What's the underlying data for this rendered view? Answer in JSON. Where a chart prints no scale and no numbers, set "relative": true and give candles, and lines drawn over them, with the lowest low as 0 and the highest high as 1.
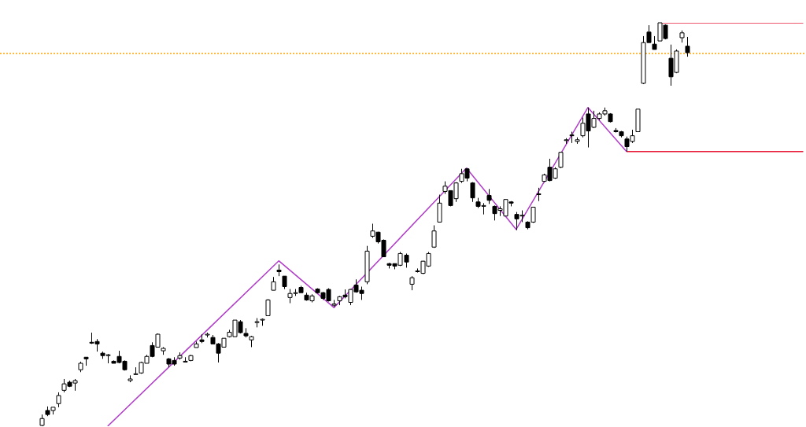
{
  "chart_data": {
    "type": "candlestick",
    "relative": true,
    "categories": [
      null,
      null,
      null,
      null,
      null,
      null,
      null,
      null,
      null,
      null,
      null,
      null,
      null,
      null,
      null,
      null,
      null,
      null,
      null,
      null,
      null,
      null,
      null,
      null,
      null,
      null,
      null,
      null,
      null,
      null,
      null,
      null,
      null,
      null,
      null,
      null,
      null,
      null,
      null,
      null,
      null,
      null,
      null,
      null,
      null,
      null,
      null,
      null,
      null,
      null,
      null,
      null,
      null,
      null,
      null,
      null,
      null,
      null,
      null,
      null,
      null,
      null,
      null,
      null,
      null,
      null,
      null,
      null,
      null,
      null,
      null,
      null,
      null,
      null,
      null,
      null,
      null,
      null,
      null,
      null,
      null,
      null,
      null,
      null,
      null,
      null,
      null,
      null,
      null,
      null,
      null,
      null,
      null,
      null,
      null,
      null,
      null,
      null,
      null,
      null,
      null,
      null,
      null,
      null,
      null,
      null,
      null,
      null,
      null,
      null,
      null,
      null,
      null,
      null,
      null,
      null,
      null,
      null,
      null,
      null,
      null,
      null,
      null,
      null,
      null,
      null,
      null,
      null,
      null,
      null,
      null,
      null,
      null,
      null,
      null,
      null,
      null,
      null,
      null,
      null,
      null,
      null,
      null,
      null,
      null,
      null
    ],
    "ohlc": [
      null,
      null,
      null,
      null,
      null,
      null,
      null,
      [
        0.002,
        0.029,
        0,
        0.019
      ],
      [
        0.039,
        0.049,
        0.025,
        0.029
      ],
      [
        0.039,
        0.047,
        0.029,
        0.047
      ],
      [
        0.056,
        0.084,
        0.047,
        0.076
      ],
      [
        0.089,
        0.117,
        0.084,
        0.105
      ],
      [
        0.109,
        0.113,
        0.097,
        0.099
      ],
      [
        0.107,
        0.117,
        0.088,
        0.113
      ],
      [
        0.14,
        0.16,
        0.134,
        0.156
      ],
      [
        0.171,
        0.171,
        0.15,
        0.167
      ],
      [
        0.208,
        0.232,
        0.204,
        0.206
      ],
      [
        0.21,
        0.216,
        0.185,
        0.204
      ],
      [
        0.181,
        0.185,
        0.167,
        0.175
      ],
      [
        0.177,
        0.179,
        0.156,
        0.177
      ],
      [
        0.161,
        0.163,
        0.156,
        0.156
      ],
      [
        0.173,
        0.187,
        0.156,
        0.158
      ],
      [
        0.161,
        0.163,
        0.138,
        0.14
      ],
      [
        0.113,
        0.126,
        0.109,
        0.117
      ],
      [
        0.13,
        0.146,
        0.128,
        0.13
      ],
      [
        0.132,
        0.16,
        0.13,
        0.158
      ],
      [
        0.156,
        0.177,
        0.156,
        0.173
      ],
      [
        0.2,
        0.208,
        0.171,
        0.173
      ],
      [
        0.196,
        0.23,
        0.195,
        0.228
      ],
      [
        0.187,
        0.196,
        0.177,
        0.193
      ],
      [
        0.167,
        0.169,
        0.146,
        0.154
      ],
      [
        0.163,
        0.171,
        0.15,
        0.154
      ],
      [
        0.169,
        0.183,
        0.165,
        0.175
      ],
      [
        0.161,
        0.171,
        0.16,
        0.161
      ],
      [
        0.163,
        0.177,
        0.161,
        0.175
      ],
      [
        0.195,
        0.21,
        0.195,
        0.204
      ],
      [
        0.214,
        0.228,
        0.206,
        0.21
      ],
      [
        0.228,
        0.232,
        0.22,
        0.228
      ],
      [
        0.22,
        0.226,
        0.204,
        0.204
      ],
      [
        0.204,
        0.206,
        0.158,
        0.181
      ],
      [
        0.196,
        0.218,
        0.196,
        0.218
      ],
      [
        0.222,
        0.239,
        0.22,
        0.233
      ],
      [
        0.222,
        0.263,
        0.222,
        0.263
      ],
      [
        0.259,
        0.263,
        0.23,
        0.232
      ],
      [
        0.23,
        0.243,
        0.22,
        0.224
      ],
      [
        0.214,
        0.224,
        0.196,
        0.222
      ],
      [
        0.259,
        0.268,
        0.245,
        0.259
      ],
      [
        0.263,
        0.267,
        0.249,
        0.265
      ],
      [
        0.274,
        0.315,
        0.274,
        0.313
      ],
      [
        0.337,
        0.37,
        0.337,
        0.358
      ],
      [
        0.387,
        0.401,
        0.372,
        0.383
      ],
      [
        0.372,
        0.372,
        0.34,
        0.346
      ],
      [
        0.319,
        0.34,
        0.305,
        0.329
      ],
      [
        0.331,
        0.34,
        0.323,
        0.331
      ],
      [
        0.344,
        0.348,
        0.331,
        0.331
      ],
      [
        0.325,
        0.331,
        0.311,
        0.313
      ],
      [
        0.311,
        0.327,
        0.307,
        0.323
      ],
      [
        0.34,
        0.342,
        0.329,
        0.331
      ],
      [
        0.331,
        0.333,
        0.313,
        0.317
      ],
      [
        0.339,
        0.342,
        0.309,
        0.311
      ],
      [
        0.3,
        0.313,
        0.296,
        0.303
      ],
      [
        0.311,
        0.323,
        0.3,
        0.321
      ],
      [
        0.325,
        0.339,
        0.317,
        0.321
      ],
      [
        0.307,
        0.34,
        0.3,
        0.339
      ],
      [
        0.35,
        0.364,
        0.331,
        0.333
      ],
      [
        0.337,
        0.346,
        0.313,
        0.329
      ],
      [
        0.358,
        0.447,
        0.352,
        0.434
      ],
      [
        0.471,
        0.502,
        0.467,
        0.484
      ],
      [
        0.481,
        0.482,
        0.453,
        0.457
      ],
      [
        0.461,
        0.463,
        0.42,
        0.42
      ],
      [
        0.403,
        0.405,
        0.391,
        0.399
      ],
      [
        0.403,
        0.403,
        0.389,
        0.397
      ],
      [
        0.399,
        0.432,
        0.397,
        0.428
      ],
      [
        0.424,
        0.428,
        0.393,
        0.407
      ],
      [
        0.352,
        0.372,
        0.337,
        0.368
      ],
      [
        0.385,
        0.391,
        0.381,
        0.385
      ],
      [
        0.379,
        0.41,
        0.377,
        0.409
      ],
      [
        0.397,
        0.432,
        0.395,
        0.428
      ],
      [
        0.444,
        0.498,
        0.442,
        0.484
      ],
      [
        0.506,
        0.574,
        0.506,
        0.553
      ],
      [
        0.582,
        0.607,
        0.576,
        0.595
      ],
      [
        0.584,
        0.584,
        0.545,
        0.547
      ],
      [
        0.564,
        0.605,
        0.556,
        0.603
      ],
      [
        0.607,
        0.638,
        0.603,
        0.626
      ],
      [
        0.638,
        0.64,
        0.607,
        0.615
      ],
      [
        0.603,
        0.605,
        0.556,
        0.566
      ],
      [
        0.556,
        0.566,
        0.541,
        0.545
      ],
      [
        0.547,
        0.553,
        0.525,
        0.547
      ],
      [
        0.572,
        0.588,
        0.551,
        0.56
      ],
      [
        0.545,
        0.547,
        0.51,
        0.527
      ],
      [
        0.535,
        0.545,
        0.521,
        0.539
      ],
      [
        0.521,
        0.562,
        0.521,
        0.562
      ],
      [
        0.556,
        0.558,
        0.545,
        0.553
      ],
      [
        0.525,
        0.531,
        0.486,
        0.514
      ],
      [
        0.523,
        0.535,
        0.506,
        0.523
      ],
      [
        0.506,
        0.508,
        0.488,
        0.492
      ],
      [
        0.506,
        0.543,
        0.504,
        0.543
      ],
      [
        0.576,
        0.591,
        0.558,
        0.576
      ],
      [
        0.607,
        0.626,
        0.605,
        0.623
      ],
      [
        0.642,
        0.663,
        0.607,
        0.609
      ],
      [
        0.615,
        0.642,
        0.613,
        0.638
      ],
      [
        0.642,
        0.679,
        0.64,
        0.679
      ],
      [
        0.71,
        0.714,
        0.7,
        0.71
      ],
      [
        0.722,
        0.73,
        0.702,
        0.72
      ],
      [
        0.706,
        0.716,
        0.7,
        0.71
      ],
      [
        0.72,
        0.765,
        0.716,
        0.751
      ],
      [
        0.774,
        0.79,
        0.691,
        0.732
      ],
      [
        0.741,
        0.782,
        0.739,
        0.763
      ],
      [
        0.763,
        0.778,
        0.759,
        0.774
      ],
      [
        0.774,
        0.79,
        0.77,
        0.782
      ],
      [
        0.774,
        0.776,
        0.753,
        0.755
      ],
      [
        0.733,
        0.739,
        0.728,
        0.73
      ],
      [
        0.73,
        0.732,
        0.716,
        0.72
      ],
      [
        0.712,
        0.718,
        0.681,
        0.693
      ],
      [
        0.706,
        0.735,
        0.702,
        0.72
      ],
      [
        0.73,
        0.786,
        0.73,
        0.786
      ],
      [
        0.85,
        0.967,
        0.848,
        0.951
      ],
      [
        0.977,
        0.994,
        0.951,
        0.951
      ],
      [
        0.947,
        0.967,
        0.934,
        0.934
      ],
      [
        0.955,
        1,
        0.955,
        1
      ],
      [
        0.994,
        0.996,
        0.959,
        0.961
      ],
      [
        0.912,
        0.946,
        0.844,
        0.866
      ],
      [
        0.877,
        0.934,
        0.875,
        0.93
      ],
      [
        0.963,
        0.981,
        0.951,
        0.975
      ],
      [
        0.942,
        0.965,
        0.916,
        0.926
      ],
      null,
      null,
      null,
      null,
      null,
      null,
      null,
      null,
      null,
      null,
      null,
      null,
      null,
      null,
      null,
      null,
      null,
      null,
      null,
      null,
      null
    ],
    "series": [
      {
        "type": "line",
        "color": "#b03cc8",
        "values": [
          null,
          null,
          null,
          null,
          null,
          null,
          null,
          null,
          null,
          null,
          null,
          null,
          null,
          null,
          null,
          null,
          null,
          null,
          null,
          0,
          null,
          null,
          null,
          null,
          null,
          null,
          null,
          null,
          null,
          null,
          null,
          null,
          null,
          null,
          null,
          null,
          null,
          null,
          null,
          null,
          null,
          null,
          null,
          null,
          null,
          null,
          null,
          null,
          null,
          null,
          0.41,
          null,
          null,
          null,
          null,
          null,
          null,
          null,
          null,
          null,
          0.294,
          null,
          null,
          null,
          null,
          null,
          null,
          null,
          null,
          null,
          null,
          null,
          null,
          null,
          null,
          null,
          null,
          null,
          null,
          null,
          null,
          null,
          null,
          null,
          0.64,
          null,
          null,
          null,
          null,
          null,
          null,
          null,
          null,
          0.488,
          null,
          null,
          null,
          null,
          null,
          null,
          null,
          null,
          null,
          null,
          null,
          null,
          0.79,
          null,
          null,
          null,
          null,
          null,
          null,
          0.681,
          null,
          null,
          null,
          null,
          null,
          null,
          null,
          null,
          null,
          null,
          null,
          null,
          null,
          null,
          null,
          null,
          null,
          null,
          null,
          null,
          null,
          null,
          null,
          null,
          null,
          null,
          null,
          null,
          null,
          null,
          null,
          null
        ]
      },
      {
        "type": "line",
        "color": "#e8203c",
        "values": [
          null,
          null,
          null,
          null,
          null,
          null,
          null,
          null,
          null,
          null,
          null,
          null,
          null,
          null,
          null,
          null,
          null,
          null,
          null,
          null,
          null,
          null,
          null,
          null,
          null,
          null,
          null,
          null,
          null,
          null,
          null,
          null,
          null,
          null,
          null,
          null,
          null,
          null,
          null,
          null,
          null,
          null,
          null,
          null,
          null,
          null,
          null,
          null,
          null,
          null,
          null,
          null,
          null,
          null,
          null,
          null,
          null,
          null,
          null,
          null,
          null,
          null,
          null,
          null,
          null,
          null,
          null,
          null,
          null,
          null,
          null,
          null,
          null,
          null,
          null,
          null,
          null,
          null,
          null,
          null,
          null,
          null,
          null,
          null,
          null,
          null,
          null,
          null,
          null,
          null,
          null,
          null,
          null,
          null,
          null,
          null,
          null,
          null,
          null,
          null,
          null,
          null,
          null,
          null,
          null,
          null,
          null,
          null,
          null,
          null,
          null,
          null,
          null,
          null,
          null,
          null,
          null,
          null,
          null,
          1,
          null,
          null,
          null,
          null,
          null,
          null,
          null,
          null,
          null,
          null,
          null,
          null,
          null,
          null,
          null,
          null,
          null,
          null,
          null,
          null,
          null,
          null,
          null,
          null,
          null,
          1
        ]
      },
      {
        "type": "line",
        "color": "#e8203c",
        "values": [
          null,
          null,
          null,
          null,
          null,
          null,
          null,
          null,
          null,
          null,
          null,
          null,
          null,
          null,
          null,
          null,
          null,
          null,
          null,
          null,
          null,
          null,
          null,
          null,
          null,
          null,
          null,
          null,
          null,
          null,
          null,
          null,
          null,
          null,
          null,
          null,
          null,
          null,
          null,
          null,
          null,
          null,
          null,
          null,
          null,
          null,
          null,
          null,
          null,
          null,
          null,
          null,
          null,
          null,
          null,
          null,
          null,
          null,
          null,
          null,
          null,
          null,
          null,
          null,
          null,
          null,
          null,
          null,
          null,
          null,
          null,
          null,
          null,
          null,
          null,
          null,
          null,
          null,
          null,
          null,
          null,
          null,
          null,
          null,
          null,
          null,
          null,
          null,
          null,
          null,
          null,
          null,
          null,
          null,
          null,
          null,
          null,
          null,
          null,
          null,
          null,
          null,
          null,
          null,
          null,
          null,
          null,
          null,
          null,
          null,
          null,
          null,
          null,
          0.681,
          null,
          null,
          null,
          null,
          null,
          null,
          null,
          null,
          null,
          null,
          null,
          null,
          null,
          null,
          null,
          null,
          null,
          null,
          null,
          null,
          null,
          null,
          null,
          null,
          null,
          null,
          null,
          null,
          null,
          null,
          null,
          0.681
        ]
      }
    ],
    "ref_lines": [
      {
        "axis": "y",
        "value": 0.924,
        "color": "#ffa500",
        "line_style": "dotted"
      }
    ]
  }
}
